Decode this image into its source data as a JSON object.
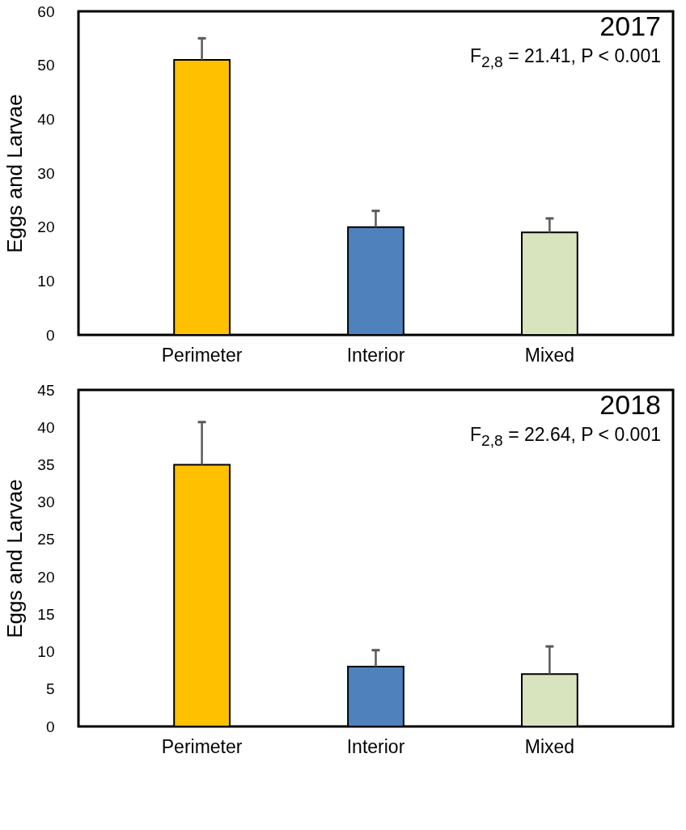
{
  "chart_data": [
    {
      "type": "bar",
      "title": "2017",
      "ylabel": "Eggs and Larvae",
      "categories": [
        "Perimeter",
        "Interior",
        "Mixed"
      ],
      "values": [
        51,
        20,
        19
      ],
      "colors": [
        "#ffc000",
        "#4f81bd",
        "#d7e4bd"
      ],
      "errors": [
        [
          51,
          55
        ],
        [
          20,
          23
        ],
        [
          19,
          21.6
        ]
      ],
      "ylim": [
        0,
        60
      ],
      "yticks": [
        0,
        10,
        20,
        30,
        40,
        50,
        60
      ],
      "annotations": [
        "F$_{2,8}$ = 21.41, P < 0.001"
      ]
    },
    {
      "type": "bar",
      "title": "2018",
      "ylabel": "Eggs and Larvae",
      "categories": [
        "Perimeter",
        "Interior",
        "Mixed"
      ],
      "values": [
        35,
        8,
        7
      ],
      "colors": [
        "#ffc000",
        "#4f81bd",
        "#d7e4bd"
      ],
      "errors": [
        [
          35,
          40.7
        ],
        [
          8,
          10.2
        ],
        [
          7,
          10.7
        ]
      ],
      "ylim": [
        0,
        45
      ],
      "yticks": [
        0,
        5,
        10,
        15,
        20,
        25,
        30,
        35,
        40,
        45
      ],
      "annotations": [
        "F$_{2,8}$ = 22.64, P < 0.001"
      ]
    }
  ]
}
